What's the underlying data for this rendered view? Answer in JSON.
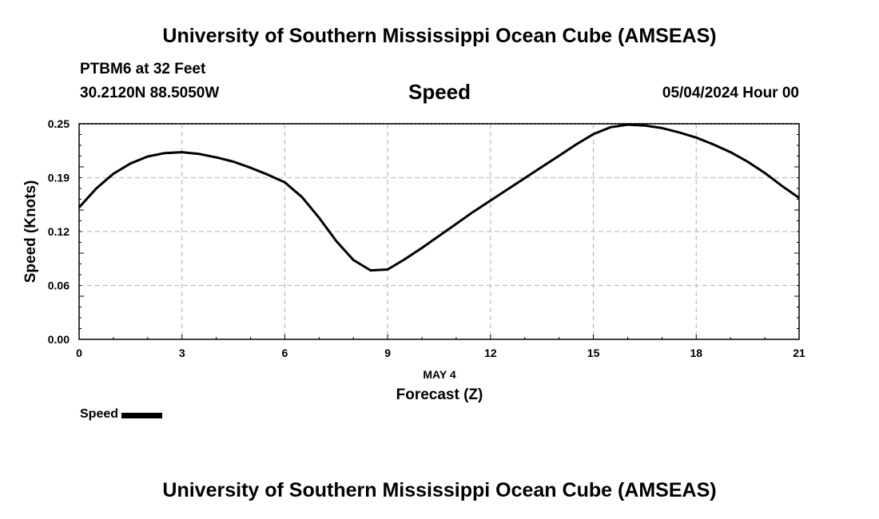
{
  "header": {
    "title": "University of Southern Mississippi Ocean Cube (AMSEAS)",
    "station": "PTBM6 at 32 Feet",
    "coords": "30.2120N  88.5050W",
    "plot_title": "Speed",
    "datetime": "05/04/2024 Hour 00"
  },
  "footer": {
    "title": "University of Southern Mississippi Ocean Cube (AMSEAS)"
  },
  "legend": {
    "label": "Speed"
  },
  "colors": {
    "line": "#000000",
    "grid": "#c0c0c0"
  },
  "chart_data": {
    "type": "line",
    "title": "Speed",
    "xlabel": "Forecast (Z)",
    "xlabel_date": "MAY 4",
    "ylabel": "Speed (Knots)",
    "xlim": [
      0,
      21
    ],
    "ylim": [
      0,
      0.25
    ],
    "xticks": [
      "0",
      "3",
      "6",
      "9",
      "12",
      "15",
      "18",
      "21"
    ],
    "yticks": [
      "0.00",
      "0.06",
      "0.12",
      "0.19",
      "0.25"
    ],
    "grid": true,
    "legend_position": "bottom-left",
    "series": [
      {
        "name": "Speed",
        "x": [
          0,
          0.5,
          1,
          1.5,
          2,
          2.5,
          3,
          3.5,
          4,
          4.5,
          5,
          5.5,
          6,
          6.5,
          7,
          7.5,
          8,
          8.5,
          9,
          9.5,
          10,
          10.5,
          11,
          11.5,
          12,
          12.5,
          13,
          13.5,
          14,
          14.5,
          15,
          15.5,
          16,
          16.5,
          17,
          17.5,
          18,
          18.5,
          19,
          19.5,
          20,
          20.5,
          21
        ],
        "y": [
          0.153,
          0.175,
          0.192,
          0.204,
          0.212,
          0.216,
          0.217,
          0.215,
          0.211,
          0.206,
          0.199,
          0.191,
          0.182,
          0.165,
          0.141,
          0.114,
          0.092,
          0.08,
          0.081,
          0.093,
          0.106,
          0.12,
          0.134,
          0.148,
          0.161,
          0.174,
          0.187,
          0.2,
          0.213,
          0.226,
          0.238,
          0.246,
          0.249,
          0.248,
          0.245,
          0.24,
          0.234,
          0.226,
          0.217,
          0.206,
          0.193,
          0.178,
          0.164
        ]
      }
    ]
  }
}
